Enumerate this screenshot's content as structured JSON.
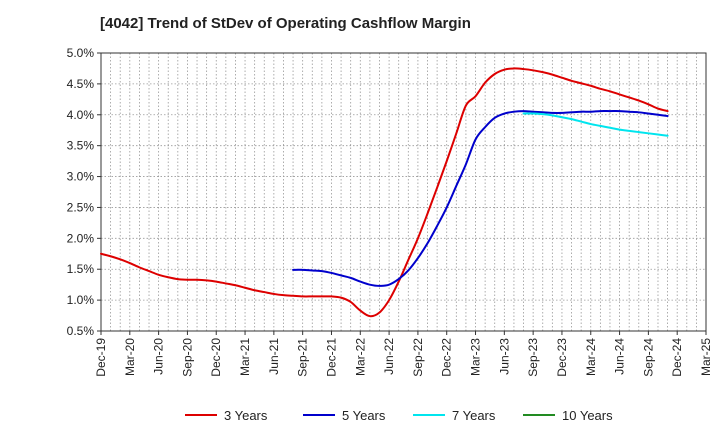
{
  "chart_data": {
    "type": "line",
    "title": "[4042]  Trend of StDev of Operating Cashflow Margin",
    "xlabel": "",
    "ylabel": "",
    "ylim": [
      0.5,
      5.0
    ],
    "y_ticks": [
      "0.5%",
      "1.0%",
      "1.5%",
      "2.0%",
      "2.5%",
      "3.0%",
      "3.5%",
      "4.0%",
      "4.5%",
      "5.0%"
    ],
    "y_tick_values": [
      0.5,
      1.0,
      1.5,
      2.0,
      2.5,
      3.0,
      3.5,
      4.0,
      4.5,
      5.0
    ],
    "x_ticks": [
      "Dec-19",
      "Mar-20",
      "Jun-20",
      "Sep-20",
      "Dec-20",
      "Mar-21",
      "Jun-21",
      "Sep-21",
      "Dec-21",
      "Mar-22",
      "Jun-22",
      "Sep-22",
      "Dec-22",
      "Mar-23",
      "Jun-23",
      "Sep-23",
      "Dec-23",
      "Mar-24",
      "Jun-24",
      "Sep-24",
      "Dec-24",
      "Mar-25"
    ],
    "grid": true,
    "legend_position": "bottom",
    "series": [
      {
        "name": "3 Years",
        "color": "#dd0000",
        "points": [
          [
            "Dec-19",
            1.75
          ],
          [
            "Jan-20",
            1.71
          ],
          [
            "Feb-20",
            1.66
          ],
          [
            "Mar-20",
            1.6
          ],
          [
            "Apr-20",
            1.53
          ],
          [
            "May-20",
            1.47
          ],
          [
            "Jun-20",
            1.41
          ],
          [
            "Jul-20",
            1.37
          ],
          [
            "Aug-20",
            1.34
          ],
          [
            "Sep-20",
            1.33
          ],
          [
            "Oct-20",
            1.33
          ],
          [
            "Nov-20",
            1.32
          ],
          [
            "Dec-20",
            1.3
          ],
          [
            "Jan-21",
            1.27
          ],
          [
            "Feb-21",
            1.24
          ],
          [
            "Mar-21",
            1.2
          ],
          [
            "Apr-21",
            1.16
          ],
          [
            "May-21",
            1.13
          ],
          [
            "Jun-21",
            1.1
          ],
          [
            "Jul-21",
            1.08
          ],
          [
            "Aug-21",
            1.07
          ],
          [
            "Sep-21",
            1.06
          ],
          [
            "Oct-21",
            1.06
          ],
          [
            "Nov-21",
            1.06
          ],
          [
            "Dec-21",
            1.06
          ],
          [
            "Jan-22",
            1.04
          ],
          [
            "Feb-22",
            0.97
          ],
          [
            "Mar-22",
            0.83
          ],
          [
            "Apr-22",
            0.74
          ],
          [
            "May-22",
            0.8
          ],
          [
            "Jun-22",
            1.0
          ],
          [
            "Jul-22",
            1.3
          ],
          [
            "Aug-22",
            1.65
          ],
          [
            "Sep-22",
            2.0
          ],
          [
            "Oct-22",
            2.4
          ],
          [
            "Nov-22",
            2.82
          ],
          [
            "Dec-22",
            3.25
          ],
          [
            "Jan-23",
            3.7
          ],
          [
            "Feb-23",
            4.15
          ],
          [
            "Mar-23",
            4.3
          ],
          [
            "Apr-23",
            4.52
          ],
          [
            "May-23",
            4.66
          ],
          [
            "Jun-23",
            4.73
          ],
          [
            "Jul-23",
            4.75
          ],
          [
            "Aug-23",
            4.74
          ],
          [
            "Sep-23",
            4.72
          ],
          [
            "Oct-23",
            4.69
          ],
          [
            "Nov-23",
            4.65
          ],
          [
            "Dec-23",
            4.6
          ],
          [
            "Jan-24",
            4.55
          ],
          [
            "Feb-24",
            4.51
          ],
          [
            "Mar-24",
            4.47
          ],
          [
            "Apr-24",
            4.42
          ],
          [
            "May-24",
            4.38
          ],
          [
            "Jun-24",
            4.33
          ],
          [
            "Jul-24",
            4.28
          ],
          [
            "Aug-24",
            4.23
          ],
          [
            "Sep-24",
            4.17
          ],
          [
            "Oct-24",
            4.1
          ],
          [
            "Nov-24",
            4.06
          ]
        ]
      },
      {
        "name": "5 Years",
        "color": "#0000cc",
        "points": [
          [
            "Aug-21",
            1.49
          ],
          [
            "Sep-21",
            1.49
          ],
          [
            "Oct-21",
            1.48
          ],
          [
            "Nov-21",
            1.47
          ],
          [
            "Dec-21",
            1.44
          ],
          [
            "Jan-22",
            1.4
          ],
          [
            "Feb-22",
            1.36
          ],
          [
            "Mar-22",
            1.3
          ],
          [
            "Apr-22",
            1.25
          ],
          [
            "May-22",
            1.23
          ],
          [
            "Jun-22",
            1.25
          ],
          [
            "Jul-22",
            1.34
          ],
          [
            "Aug-22",
            1.48
          ],
          [
            "Sep-22",
            1.68
          ],
          [
            "Oct-22",
            1.92
          ],
          [
            "Nov-22",
            2.2
          ],
          [
            "Dec-22",
            2.5
          ],
          [
            "Jan-23",
            2.85
          ],
          [
            "Feb-23",
            3.2
          ],
          [
            "Mar-23",
            3.6
          ],
          [
            "Apr-23",
            3.8
          ],
          [
            "May-23",
            3.95
          ],
          [
            "Jun-23",
            4.02
          ],
          [
            "Jul-23",
            4.05
          ],
          [
            "Aug-23",
            4.06
          ],
          [
            "Sep-23",
            4.05
          ],
          [
            "Oct-23",
            4.04
          ],
          [
            "Nov-23",
            4.03
          ],
          [
            "Dec-23",
            4.03
          ],
          [
            "Jan-24",
            4.04
          ],
          [
            "Feb-24",
            4.05
          ],
          [
            "Mar-24",
            4.05
          ],
          [
            "Apr-24",
            4.06
          ],
          [
            "May-24",
            4.06
          ],
          [
            "Jun-24",
            4.06
          ],
          [
            "Jul-24",
            4.05
          ],
          [
            "Aug-24",
            4.04
          ],
          [
            "Sep-24",
            4.02
          ],
          [
            "Oct-24",
            4.0
          ],
          [
            "Nov-24",
            3.98
          ]
        ]
      },
      {
        "name": "7 Years",
        "color": "#00e5ee",
        "points": [
          [
            "Aug-23",
            4.02
          ],
          [
            "Sep-23",
            4.02
          ],
          [
            "Oct-23",
            4.01
          ],
          [
            "Nov-23",
            3.99
          ],
          [
            "Dec-23",
            3.96
          ],
          [
            "Jan-24",
            3.93
          ],
          [
            "Feb-24",
            3.89
          ],
          [
            "Mar-24",
            3.85
          ],
          [
            "Apr-24",
            3.82
          ],
          [
            "May-24",
            3.79
          ],
          [
            "Jun-24",
            3.76
          ],
          [
            "Jul-24",
            3.74
          ],
          [
            "Aug-24",
            3.72
          ],
          [
            "Sep-24",
            3.7
          ],
          [
            "Oct-24",
            3.68
          ],
          [
            "Nov-24",
            3.66
          ]
        ]
      },
      {
        "name": "10 Years",
        "color": "#228b22",
        "points": []
      }
    ]
  }
}
